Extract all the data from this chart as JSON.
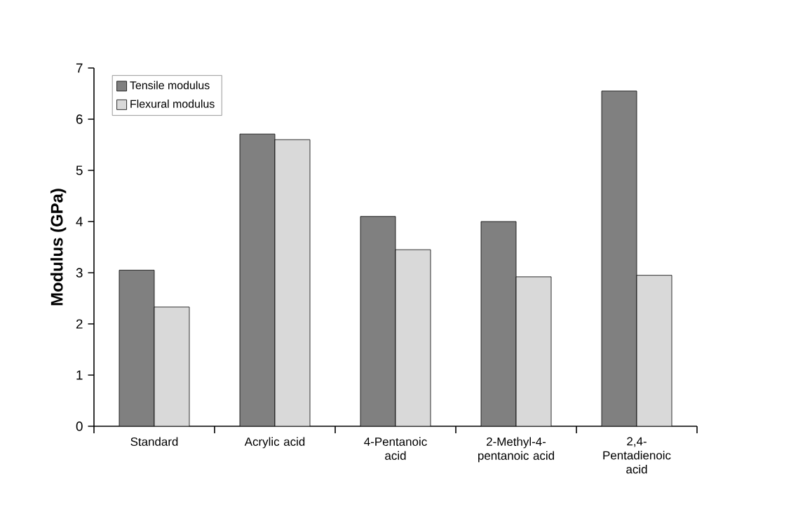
{
  "chart_data": {
    "type": "bar",
    "ylabel": "Modulus (GPa)",
    "categories": [
      "Standard",
      "Acrylic acid",
      "4-Pentanoic acid",
      "2-Methyl-4-pentanoic acid",
      "2,4-Pentadienoic acid"
    ],
    "series": [
      {
        "name": "Tensile modulus",
        "color": "#808080",
        "values": [
          3.05,
          5.71,
          4.1,
          4.0,
          6.55
        ]
      },
      {
        "name": "Flexural modulus",
        "color": "#d9d9d9",
        "values": [
          2.33,
          5.6,
          3.45,
          2.92,
          2.95
        ]
      }
    ],
    "ylim": [
      0,
      7
    ],
    "yticks": [
      0,
      1,
      2,
      3,
      4,
      5,
      6,
      7
    ],
    "grid": false,
    "legend": "top left"
  }
}
